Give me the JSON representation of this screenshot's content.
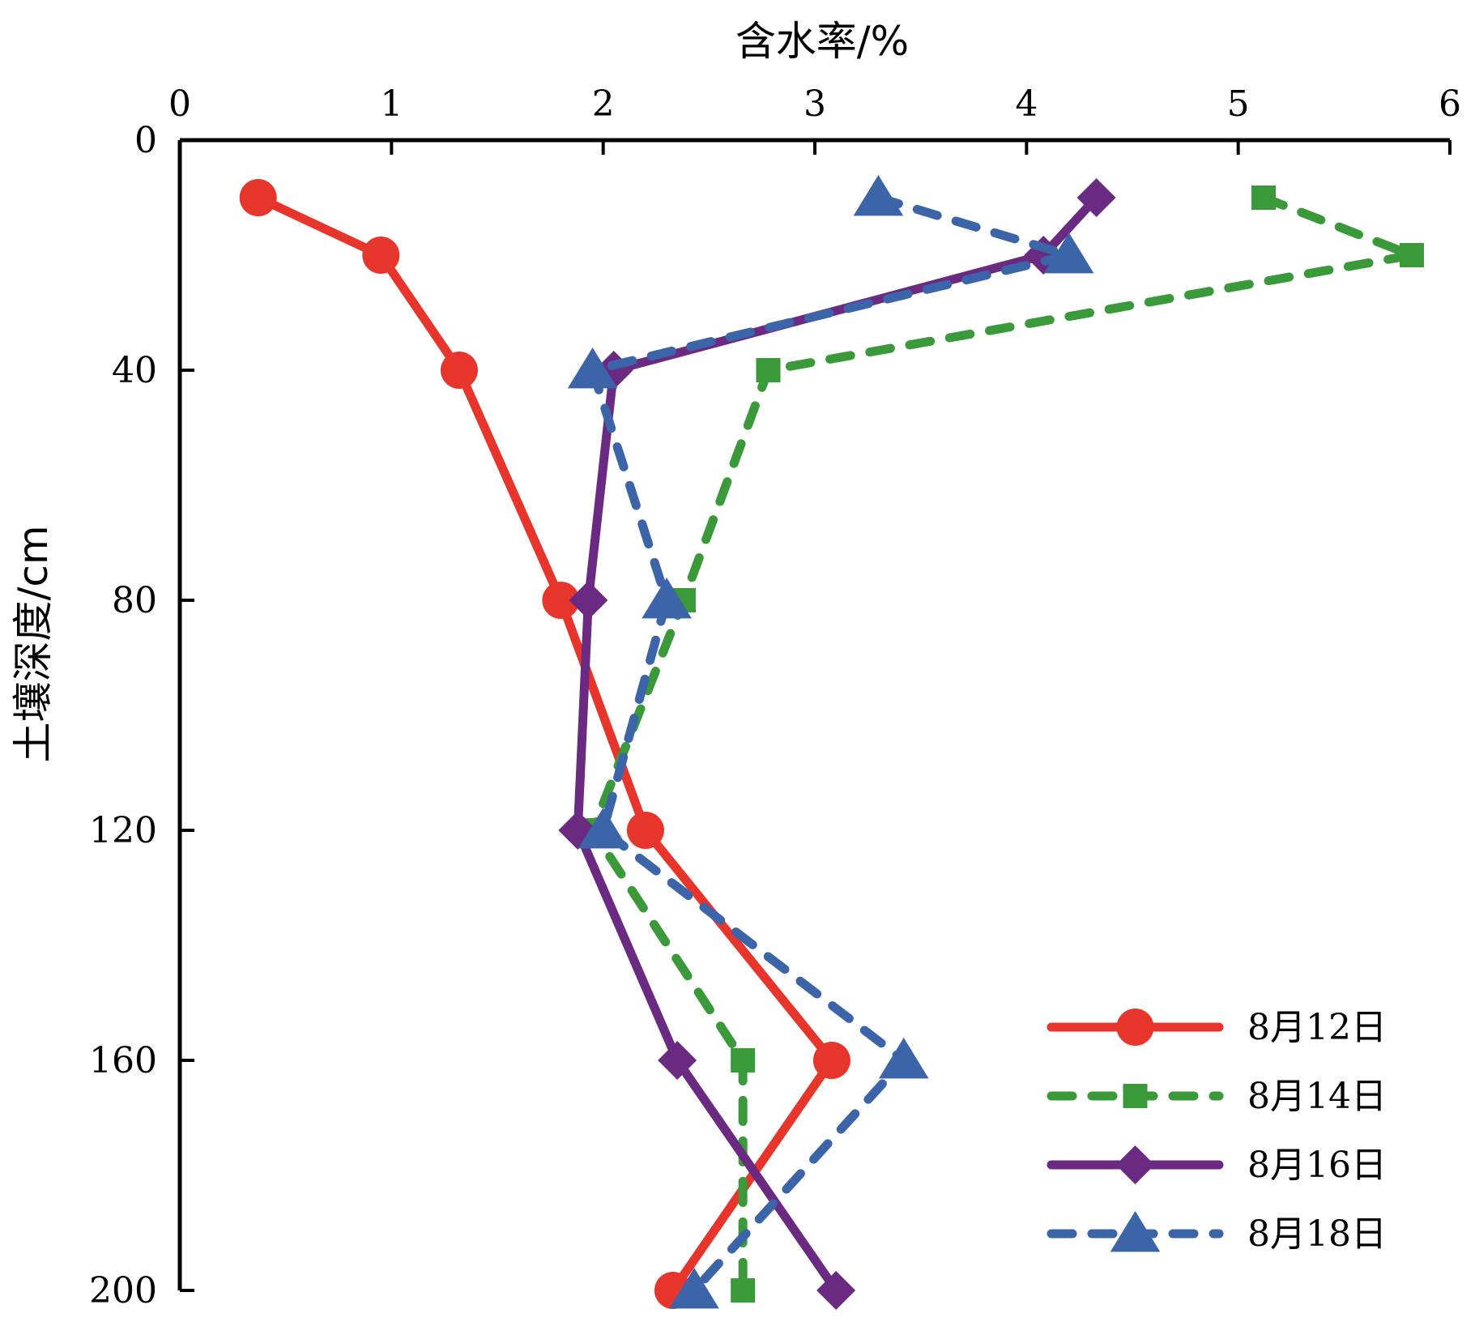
{
  "chart_data": {
    "type": "line",
    "orientation": "depth-profile",
    "xlabel": "含水率/%",
    "ylabel": "土壤深度/cm",
    "xlim": [
      0,
      6
    ],
    "ylim": [
      0,
      200
    ],
    "x_axis_position": "top",
    "y_axis_inverted": true,
    "x_ticks": [
      "0",
      "1",
      "2",
      "3",
      "4",
      "5",
      "6"
    ],
    "y_ticks": [
      "0",
      "40",
      "80",
      "120",
      "160",
      "200"
    ],
    "grid": false,
    "legend_position": "bottom-right",
    "depths": [
      10,
      20,
      40,
      80,
      120,
      160,
      200
    ],
    "series": [
      {
        "name": "8月12日",
        "color": "#e8352b",
        "dash": "solid",
        "marker": "circle",
        "values": [
          0.37,
          0.95,
          1.32,
          1.8,
          2.2,
          3.08,
          2.33
        ]
      },
      {
        "name": "8月14日",
        "color": "#3a9a3a",
        "dash": "dashed",
        "marker": "square",
        "values": [
          5.12,
          5.82,
          2.78,
          2.38,
          1.95,
          2.66,
          2.66
        ]
      },
      {
        "name": "8月16日",
        "color": "#6a2a82",
        "dash": "solid",
        "marker": "diamond",
        "values": [
          4.33,
          4.08,
          2.05,
          1.93,
          1.88,
          2.35,
          3.1
        ]
      },
      {
        "name": "8月18日",
        "color": "#3c64a8",
        "dash": "dashed",
        "marker": "triangle",
        "values": [
          3.3,
          4.2,
          1.95,
          2.3,
          2.0,
          3.42,
          2.43
        ]
      }
    ]
  }
}
